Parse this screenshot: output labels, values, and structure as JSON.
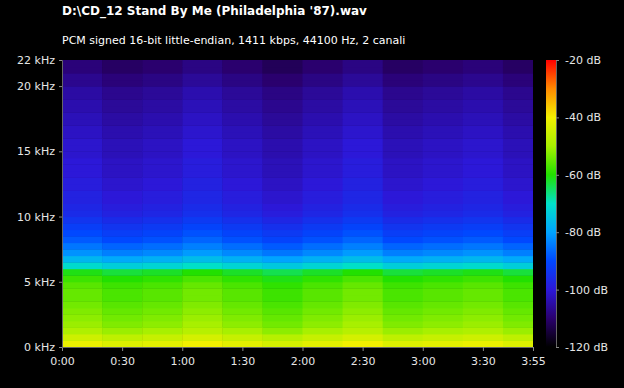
{
  "chart_data": {
    "type": "heatmap",
    "title": "D:\\CD_12 Stand By Me (Philadelphia '87).wav",
    "subtitle": "PCM signed 16-bit little-endian, 1411 kbps, 44100 Hz, 2 canali",
    "xlim": [
      0,
      235
    ],
    "xticks": [
      {
        "value": 0,
        "label": "0:00"
      },
      {
        "value": 30,
        "label": "0:30"
      },
      {
        "value": 60,
        "label": "1:00"
      },
      {
        "value": 90,
        "label": "1:30"
      },
      {
        "value": 120,
        "label": "2:00"
      },
      {
        "value": 150,
        "label": "2:30"
      },
      {
        "value": 180,
        "label": "3:00"
      },
      {
        "value": 210,
        "label": "3:30"
      },
      {
        "value": 235,
        "label": "3:55"
      }
    ],
    "ylim": [
      0,
      22
    ],
    "yticks": [
      {
        "value": 0,
        "label": "0 kHz"
      },
      {
        "value": 5,
        "label": "5 kHz"
      },
      {
        "value": 10,
        "label": "10 kHz"
      },
      {
        "value": 15,
        "label": "15 kHz"
      },
      {
        "value": 20,
        "label": "20 kHz"
      },
      {
        "value": 22,
        "label": "22 kHz"
      }
    ],
    "zlim": [
      -120,
      -20
    ],
    "zticks": [
      {
        "value": -20,
        "label": "-20 dB"
      },
      {
        "value": -40,
        "label": "-40 dB"
      },
      {
        "value": -60,
        "label": "-60 dB"
      },
      {
        "value": -80,
        "label": "-80 dB"
      },
      {
        "value": -100,
        "label": "-100 dB"
      },
      {
        "value": -120,
        "label": "-120 dB"
      }
    ],
    "x_bins": [
      0,
      20,
      40,
      60,
      80,
      100,
      120,
      140,
      160,
      180,
      200,
      220,
      235
    ],
    "y_bins": [
      0,
      0.5,
      1,
      1.5,
      2,
      2.5,
      3,
      3.5,
      4,
      4.5,
      5,
      5.5,
      6,
      6.5,
      7,
      7.5,
      8,
      8.5,
      9,
      9.5,
      10,
      10.5,
      11,
      11.5,
      12,
      12.5,
      13,
      13.5,
      14,
      14.5,
      15,
      15.5,
      16,
      16.5,
      17,
      17.5,
      18,
      18.5,
      19,
      19.5,
      20,
      20.5,
      21,
      21.5,
      22
    ],
    "z": [
      [
        -41,
        -43,
        -42,
        -40,
        -42,
        -44,
        -42,
        -40,
        -43,
        -42,
        -41,
        -43
      ],
      [
        -45,
        -47,
        -46,
        -44,
        -46,
        -48,
        -46,
        -44,
        -47,
        -46,
        -45,
        -47
      ],
      [
        -49,
        -51,
        -50,
        -48,
        -50,
        -52,
        -50,
        -48,
        -51,
        -50,
        -49,
        -51
      ],
      [
        -51,
        -53,
        -52,
        -50,
        -52,
        -54,
        -52,
        -50,
        -53,
        -52,
        -51,
        -53
      ],
      [
        -52,
        -54,
        -53,
        -51,
        -53,
        -55,
        -53,
        -51,
        -54,
        -53,
        -52,
        -54
      ],
      [
        -53,
        -55,
        -54,
        -52,
        -54,
        -56,
        -54,
        -52,
        -55,
        -54,
        -53,
        -55
      ],
      [
        -54,
        -56,
        -55,
        -53,
        -55,
        -57,
        -55,
        -53,
        -56,
        -55,
        -54,
        -56
      ],
      [
        -55,
        -57,
        -56,
        -54,
        -56,
        -58,
        -56,
        -54,
        -57,
        -56,
        -55,
        -57
      ],
      [
        -55,
        -57,
        -56,
        -54,
        -56,
        -58,
        -56,
        -54,
        -57,
        -56,
        -55,
        -57
      ],
      [
        -56,
        -58,
        -57,
        -55,
        -57,
        -59,
        -57,
        -55,
        -58,
        -57,
        -56,
        -58
      ],
      [
        -58,
        -60,
        -59,
        -57,
        -59,
        -61,
        -59,
        -57,
        -60,
        -59,
        -58,
        -60
      ],
      [
        -61,
        -63,
        -62,
        -60,
        -62,
        -64,
        -62,
        -60,
        -63,
        -62,
        -61,
        -63
      ],
      [
        -71,
        -73,
        -72,
        -70,
        -72,
        -74,
        -72,
        -70,
        -73,
        -72,
        -71,
        -73
      ],
      [
        -77,
        -79,
        -78,
        -76,
        -78,
        -80,
        -78,
        -76,
        -79,
        -78,
        -77,
        -79
      ],
      [
        -82,
        -84,
        -83,
        -81,
        -83,
        -85,
        -83,
        -81,
        -84,
        -83,
        -82,
        -84
      ],
      [
        -85,
        -87,
        -86,
        -84,
        -86,
        -88,
        -86,
        -84,
        -87,
        -86,
        -85,
        -87
      ],
      [
        -88,
        -90,
        -89,
        -87,
        -89,
        -91,
        -89,
        -87,
        -90,
        -89,
        -88,
        -90
      ],
      [
        -90,
        -92,
        -91,
        -89,
        -91,
        -93,
        -91,
        -89,
        -92,
        -91,
        -90,
        -92
      ],
      [
        -92,
        -94,
        -93,
        -91,
        -93,
        -95,
        -93,
        -91,
        -94,
        -93,
        -92,
        -94
      ],
      [
        -94,
        -96,
        -95,
        -93,
        -95,
        -97,
        -95,
        -93,
        -96,
        -95,
        -94,
        -96
      ],
      [
        -96,
        -98,
        -97,
        -95,
        -97,
        -99,
        -97,
        -95,
        -98,
        -97,
        -96,
        -98
      ],
      [
        -97,
        -99,
        -98,
        -96,
        -98,
        -100,
        -98,
        -96,
        -99,
        -98,
        -97,
        -99
      ],
      [
        -98,
        -100,
        -99,
        -97,
        -99,
        -101,
        -99,
        -97,
        -100,
        -99,
        -98,
        -100
      ],
      [
        -98,
        -100,
        -99,
        -97,
        -99,
        -101,
        -99,
        -97,
        -100,
        -99,
        -98,
        -100
      ],
      [
        -99,
        -101,
        -100,
        -98,
        -100,
        -102,
        -100,
        -98,
        -101,
        -100,
        -99,
        -101
      ],
      [
        -99,
        -101,
        -100,
        -98,
        -100,
        -102,
        -100,
        -98,
        -101,
        -100,
        -99,
        -101
      ],
      [
        -100,
        -102,
        -101,
        -99,
        -101,
        -103,
        -101,
        -99,
        -102,
        -101,
        -100,
        -102
      ],
      [
        -100,
        -102,
        -101,
        -99,
        -101,
        -103,
        -101,
        -99,
        -102,
        -101,
        -100,
        -102
      ],
      [
        -100,
        -102,
        -101,
        -99,
        -101,
        -103,
        -101,
        -99,
        -102,
        -101,
        -100,
        -102
      ],
      [
        -101,
        -103,
        -102,
        -100,
        -102,
        -104,
        -102,
        -100,
        -103,
        -102,
        -101,
        -103
      ],
      [
        -101,
        -103,
        -102,
        -100,
        -102,
        -104,
        -102,
        -100,
        -103,
        -102,
        -101,
        -103
      ],
      [
        -101,
        -103,
        -102,
        -100,
        -102,
        -104,
        -102,
        -100,
        -103,
        -102,
        -101,
        -103
      ],
      [
        -102,
        -104,
        -103,
        -101,
        -103,
        -105,
        -103,
        -101,
        -104,
        -103,
        -102,
        -104
      ],
      [
        -102,
        -104,
        -103,
        -101,
        -103,
        -105,
        -103,
        -101,
        -104,
        -103,
        -102,
        -104
      ],
      [
        -103,
        -105,
        -104,
        -102,
        -104,
        -106,
        -104,
        -102,
        -105,
        -104,
        -103,
        -105
      ],
      [
        -103,
        -105,
        -104,
        -102,
        -104,
        -106,
        -104,
        -102,
        -105,
        -104,
        -103,
        -105
      ],
      [
        -104,
        -106,
        -105,
        -103,
        -105,
        -107,
        -105,
        -103,
        -106,
        -105,
        -104,
        -106
      ],
      [
        -104,
        -106,
        -105,
        -103,
        -105,
        -107,
        -105,
        -103,
        -106,
        -105,
        -104,
        -106
      ],
      [
        -105,
        -107,
        -106,
        -104,
        -106,
        -108,
        -106,
        -104,
        -107,
        -106,
        -105,
        -107
      ],
      [
        -105,
        -107,
        -106,
        -104,
        -106,
        -108,
        -106,
        -104,
        -107,
        -106,
        -105,
        -107
      ],
      [
        -107,
        -109,
        -108,
        -106,
        -108,
        -110,
        -108,
        -106,
        -109,
        -108,
        -107,
        -109
      ],
      [
        -107,
        -109,
        -108,
        -106,
        -108,
        -110,
        -108,
        -106,
        -109,
        -108,
        -107,
        -109
      ],
      [
        -109,
        -111,
        -110,
        -108,
        -110,
        -112,
        -110,
        -108,
        -111,
        -110,
        -109,
        -111
      ],
      [
        -109,
        -111,
        -110,
        -108,
        -110,
        -112,
        -110,
        -108,
        -111,
        -110,
        -109,
        -111
      ]
    ]
  }
}
